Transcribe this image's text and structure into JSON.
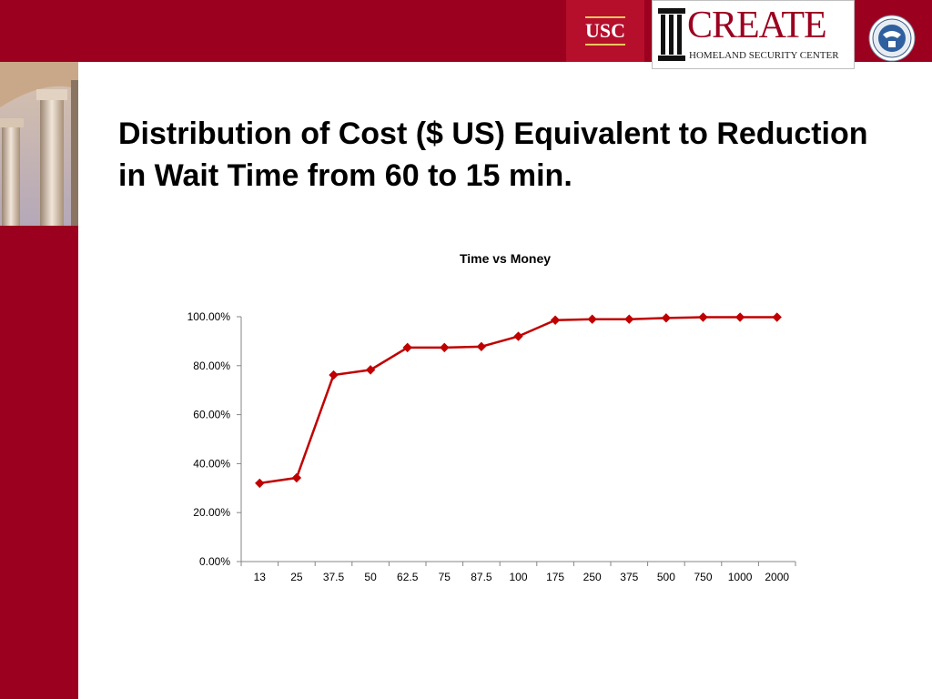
{
  "colors": {
    "brand": "#9b001f",
    "series_line": "#c00000",
    "usc_gold": "#f2c75c"
  },
  "header": {
    "usc_logo": "USC",
    "create_logo": {
      "word": "CREATE",
      "subtitle": "HOMELAND SECURITY CENTER"
    },
    "dhs_seal": "dhs-seal-icon"
  },
  "slide": {
    "title": "Distribution of Cost ($ US) Equivalent to Reduction in Wait Time from 60 to 15 min."
  },
  "chart_data": {
    "type": "line",
    "title": "Time vs Money",
    "categories": [
      "13",
      "25",
      "37.5",
      "50",
      "62.5",
      "75",
      "87.5",
      "100",
      "175",
      "250",
      "375",
      "500",
      "750",
      "1000",
      "2000"
    ],
    "series": [
      {
        "values": [
          0.32,
          0.342,
          0.762,
          0.783,
          0.874,
          0.874,
          0.878,
          0.92,
          0.986,
          0.99,
          0.99,
          0.995,
          0.998,
          0.998,
          0.998
        ]
      }
    ],
    "ylim": [
      0,
      1
    ],
    "y_ticks": [
      "0.00%",
      "20.00%",
      "40.00%",
      "60.00%",
      "80.00%",
      "100.00%"
    ],
    "y_tick_values": [
      0,
      0.2,
      0.4,
      0.6,
      0.8,
      1.0
    ],
    "marker": "diamond",
    "grid": false,
    "legend": "none",
    "xlabel": "",
    "ylabel": ""
  }
}
